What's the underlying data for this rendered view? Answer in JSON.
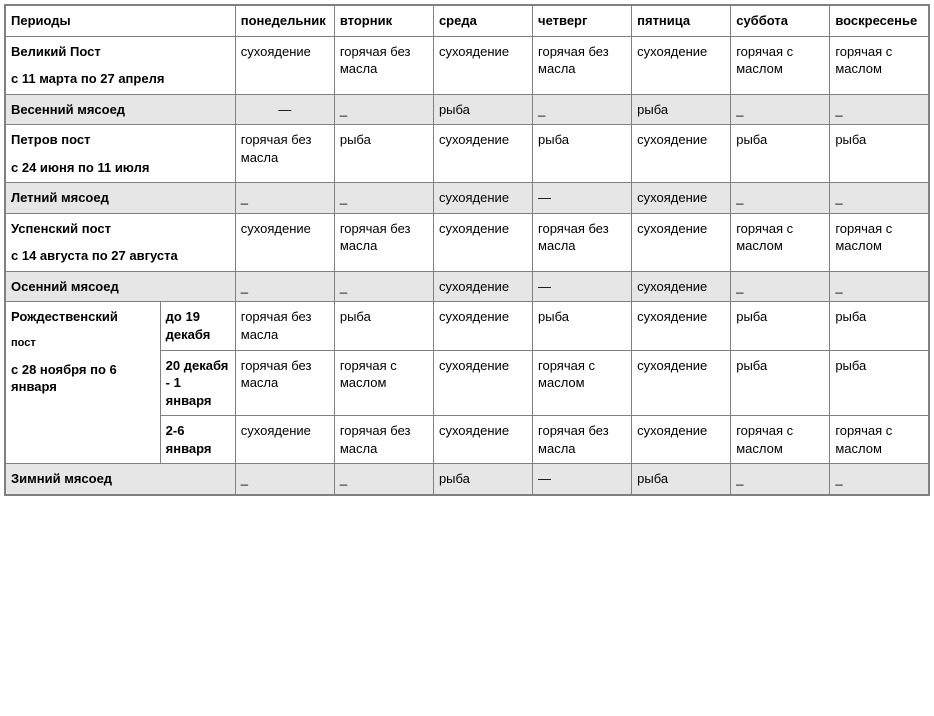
{
  "header": {
    "periods": "Периоды",
    "days": [
      "понедельник",
      "вторник",
      "среда",
      "четверг",
      "пятница",
      "суббота",
      "воскресенье"
    ]
  },
  "rows": [
    {
      "shade": false,
      "period_span": 2,
      "period_strong": "Великий Пост",
      "period_sub": "с 11 марта по 27 апреля",
      "cells": [
        "сухоядение",
        "горячая без масла",
        "сухоядение",
        "горячая без масла",
        "сухоядение",
        "горячая с маслом",
        "горячая с маслом"
      ]
    },
    {
      "shade": true,
      "period_span": 2,
      "period_strong": "Весенний мясоед",
      "period_sub": "",
      "cells_custom": [
        {
          "text": "—",
          "center": true
        },
        {
          "text": "_"
        },
        {
          "text": "рыба"
        },
        {
          "text": "_"
        },
        {
          "text": "рыба"
        },
        {
          "text": "_"
        },
        {
          "text": "_"
        }
      ]
    },
    {
      "shade": false,
      "period_span": 2,
      "period_strong": "Петров пост",
      "period_sub": "с 24 июня по 11 июля",
      "cells": [
        "горячая без масла",
        "рыба",
        "сухоядение",
        "рыба",
        "сухоядение",
        "рыба",
        "рыба"
      ]
    },
    {
      "shade": true,
      "period_span": 2,
      "period_strong": "Летний мясоед",
      "period_sub": "",
      "cells": [
        "_",
        "_",
        "сухоядение",
        "—",
        "сухоядение",
        "_",
        "_"
      ]
    },
    {
      "shade": false,
      "period_span": 2,
      "period_strong": "Успенский пост",
      "period_sub": "с 14 августа по 27 августа",
      "cells": [
        "сухоядение",
        "горячая без масла",
        "сухоядение",
        "горячая без масла",
        "сухоядение",
        "горячая с маслом",
        "горячая с маслом"
      ]
    },
    {
      "shade": true,
      "period_span": 2,
      "period_strong": "Осенний мясоед",
      "period_sub": "",
      "cells": [
        "_",
        "_",
        "сухоядение",
        "—",
        "сухоядение",
        "_",
        "_"
      ]
    }
  ],
  "rozh": {
    "shade": false,
    "period_strong": "Рождественский",
    "period_strong2": "пост",
    "period_sub": "с 28 ноября по 6 января",
    "subrows": [
      {
        "range": "до 19 декабя",
        "cells": [
          "горячая без масла",
          "рыба",
          "сухоядение",
          "рыба",
          "сухоядение",
          "рыба",
          "рыба"
        ]
      },
      {
        "range": "20 декабя - 1 января",
        "cells": [
          "горячая без масла",
          "горячая с маслом",
          "сухоядение",
          "горячая с маслом",
          "сухоядение",
          "рыба",
          "рыба"
        ]
      },
      {
        "range": "2-6 января",
        "cells": [
          "сухоядение",
          "горячая без масла",
          "сухоядение",
          "горячая без масла",
          "сухоядение",
          "горячая с маслом",
          "горячая с маслом"
        ]
      }
    ]
  },
  "last": {
    "shade": true,
    "period_span": 2,
    "period_strong": "Зимний мясоед",
    "period_sub": "",
    "cells": [
      "_",
      "_",
      "рыба",
      "—",
      "рыба",
      "_",
      "_"
    ]
  }
}
